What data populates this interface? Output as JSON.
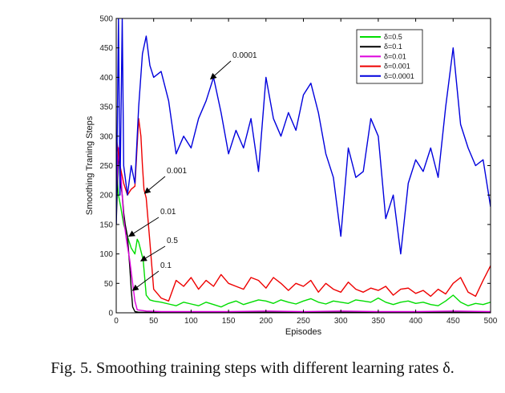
{
  "caption": "Fig. 5.   Smoothing training steps with different learning rates δ.",
  "chart_data": {
    "type": "line",
    "title": "",
    "xlabel": "Episodes",
    "ylabel": "Smoothing Traning Steps",
    "xlim": [
      0,
      500
    ],
    "ylim": [
      0,
      500
    ],
    "xticks": [
      0,
      50,
      100,
      150,
      200,
      250,
      300,
      350,
      400,
      450,
      500
    ],
    "yticks": [
      0,
      50,
      100,
      150,
      200,
      250,
      300,
      350,
      400,
      450,
      500
    ],
    "grid": false,
    "legend_position": "top-right",
    "series": [
      {
        "name": "δ=0.5",
        "color": "#00dd00",
        "x": [
          0,
          3,
          6,
          10,
          15,
          20,
          25,
          28,
          30,
          33,
          36,
          38,
          40,
          45,
          50,
          60,
          70,
          80,
          90,
          100,
          110,
          120,
          130,
          140,
          150,
          160,
          170,
          180,
          190,
          200,
          210,
          220,
          230,
          240,
          250,
          260,
          270,
          280,
          290,
          300,
          310,
          320,
          330,
          340,
          350,
          360,
          370,
          380,
          390,
          400,
          410,
          420,
          430,
          440,
          450,
          460,
          470,
          480,
          490,
          500
        ],
        "y": [
          250,
          200,
          180,
          150,
          130,
          110,
          100,
          125,
          120,
          105,
          90,
          60,
          30,
          22,
          20,
          18,
          15,
          12,
          18,
          15,
          12,
          18,
          14,
          10,
          16,
          20,
          14,
          18,
          22,
          20,
          16,
          22,
          18,
          15,
          20,
          24,
          18,
          15,
          20,
          18,
          16,
          22,
          20,
          18,
          25,
          18,
          14,
          18,
          20,
          16,
          18,
          14,
          12,
          20,
          30,
          18,
          12,
          16,
          14,
          18
        ]
      },
      {
        "name": "δ=0.1",
        "color": "#000000",
        "x": [
          0,
          3,
          5,
          8,
          10,
          12,
          15,
          18,
          20,
          22,
          25,
          30,
          40,
          50,
          100,
          200,
          300,
          400,
          500
        ],
        "y": [
          150,
          280,
          230,
          200,
          170,
          150,
          130,
          80,
          40,
          10,
          2,
          1,
          1,
          1,
          1,
          1,
          1,
          1,
          1
        ]
      },
      {
        "name": "δ=0.01",
        "color": "#dd00dd",
        "x": [
          0,
          3,
          6,
          10,
          14,
          18,
          22,
          25,
          28,
          40,
          60,
          100,
          150,
          200,
          250,
          300,
          350,
          400,
          450,
          500
        ],
        "y": [
          200,
          280,
          240,
          160,
          120,
          90,
          50,
          20,
          5,
          3,
          2,
          2,
          2,
          3,
          2,
          3,
          2,
          2,
          3,
          2
        ]
      },
      {
        "name": "δ=0.001",
        "color": "#ee0000",
        "x": [
          0,
          5,
          10,
          15,
          20,
          25,
          30,
          33,
          35,
          37,
          40,
          45,
          50,
          60,
          70,
          80,
          90,
          100,
          110,
          120,
          130,
          140,
          150,
          160,
          170,
          180,
          190,
          200,
          210,
          220,
          230,
          240,
          250,
          260,
          270,
          280,
          290,
          300,
          310,
          320,
          330,
          340,
          350,
          360,
          370,
          380,
          390,
          400,
          410,
          420,
          430,
          440,
          450,
          460,
          470,
          480,
          490,
          500
        ],
        "y": [
          300,
          250,
          220,
          200,
          210,
          215,
          330,
          300,
          250,
          210,
          195,
          120,
          40,
          25,
          20,
          55,
          45,
          60,
          40,
          55,
          45,
          65,
          50,
          45,
          40,
          60,
          55,
          42,
          60,
          50,
          38,
          50,
          45,
          55,
          35,
          50,
          40,
          35,
          52,
          40,
          35,
          42,
          38,
          45,
          30,
          40,
          42,
          33,
          38,
          28,
          40,
          32,
          50,
          60,
          35,
          28,
          55,
          80
        ]
      },
      {
        "name": "δ=0.0001",
        "color": "#0000dd",
        "x": [
          0,
          3,
          5,
          8,
          10,
          15,
          20,
          25,
          30,
          35,
          40,
          45,
          50,
          60,
          70,
          80,
          90,
          100,
          110,
          120,
          130,
          140,
          150,
          160,
          170,
          180,
          190,
          200,
          210,
          220,
          230,
          240,
          250,
          260,
          270,
          280,
          290,
          300,
          310,
          320,
          330,
          340,
          350,
          360,
          370,
          380,
          390,
          400,
          410,
          420,
          430,
          440,
          450,
          460,
          470,
          480,
          490,
          500
        ],
        "y": [
          150,
          500,
          200,
          500,
          250,
          200,
          250,
          220,
          350,
          440,
          470,
          420,
          400,
          410,
          360,
          270,
          300,
          280,
          330,
          360,
          400,
          340,
          270,
          310,
          280,
          330,
          240,
          400,
          330,
          300,
          340,
          310,
          370,
          390,
          340,
          270,
          230,
          130,
          280,
          230,
          240,
          330,
          300,
          160,
          200,
          100,
          220,
          260,
          240,
          280,
          230,
          350,
          450,
          320,
          280,
          250,
          260,
          180
        ]
      }
    ],
    "annotations": [
      {
        "text": "0.0001",
        "target": [
          126,
          397
        ]
      },
      {
        "text": "0.001",
        "target": [
          38,
          203
        ]
      },
      {
        "text": "0.01",
        "target": [
          17,
          130
        ]
      },
      {
        "text": "0.5",
        "target": [
          33,
          88
        ]
      },
      {
        "text": "0.1",
        "target": [
          22,
          38
        ]
      }
    ]
  }
}
